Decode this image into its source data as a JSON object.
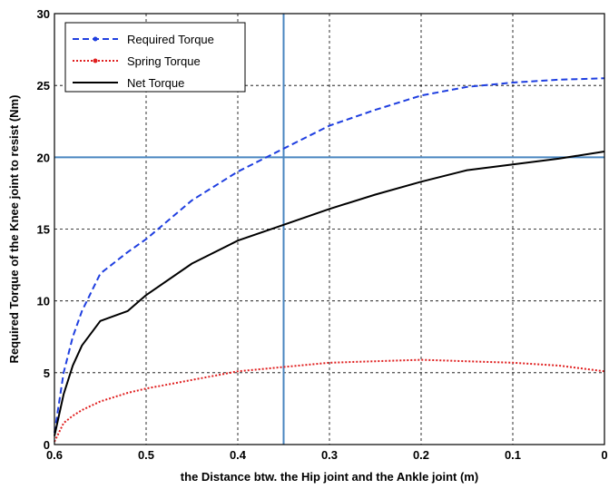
{
  "chart_data": {
    "type": "line",
    "title": "",
    "xlabel": "the Distance btw. the Hip joint and the Ankle joint (m)",
    "ylabel": "Required Torque of the Knee joint to resist (Nm)",
    "xlim": [
      0.6,
      0
    ],
    "ylim": [
      0,
      30
    ],
    "x_reversed": true,
    "xticks": [
      "0.6",
      "0.5",
      "0.4",
      "0.3",
      "0.2",
      "0.1",
      "0"
    ],
    "yticks": [
      "0",
      "5",
      "10",
      "15",
      "20",
      "25",
      "30"
    ],
    "grid": true,
    "legend_position": "top-left",
    "reference_lines": [
      {
        "orientation": "vertical",
        "x": 0.35,
        "color": "#4a86c0"
      },
      {
        "orientation": "horizontal",
        "y": 20,
        "color": "#4a86c0"
      }
    ],
    "x": [
      0.6,
      0.59,
      0.58,
      0.57,
      0.55,
      0.52,
      0.5,
      0.45,
      0.4,
      0.35,
      0.3,
      0.25,
      0.2,
      0.15,
      0.1,
      0.05,
      0.0
    ],
    "series": [
      {
        "name": "Required Torque",
        "color": "#1f3fe0",
        "style": "dashed",
        "values": [
          0.8,
          5.0,
          7.5,
          9.3,
          11.9,
          13.4,
          14.3,
          17.0,
          19.0,
          20.6,
          22.2,
          23.3,
          24.3,
          24.9,
          25.2,
          25.4,
          25.5
        ]
      },
      {
        "name": "Spring Torque",
        "color": "#e02020",
        "style": "dotted",
        "values": [
          0.2,
          1.5,
          2.0,
          2.4,
          3.0,
          3.6,
          3.9,
          4.5,
          5.1,
          5.4,
          5.7,
          5.8,
          5.9,
          5.8,
          5.7,
          5.5,
          5.1
        ]
      },
      {
        "name": "Net Torque",
        "color": "#000000",
        "style": "solid",
        "values": [
          0.6,
          3.5,
          5.5,
          6.9,
          8.6,
          9.3,
          10.4,
          12.6,
          14.2,
          15.3,
          16.4,
          17.4,
          18.3,
          19.1,
          19.5,
          19.9,
          20.4
        ]
      }
    ]
  }
}
